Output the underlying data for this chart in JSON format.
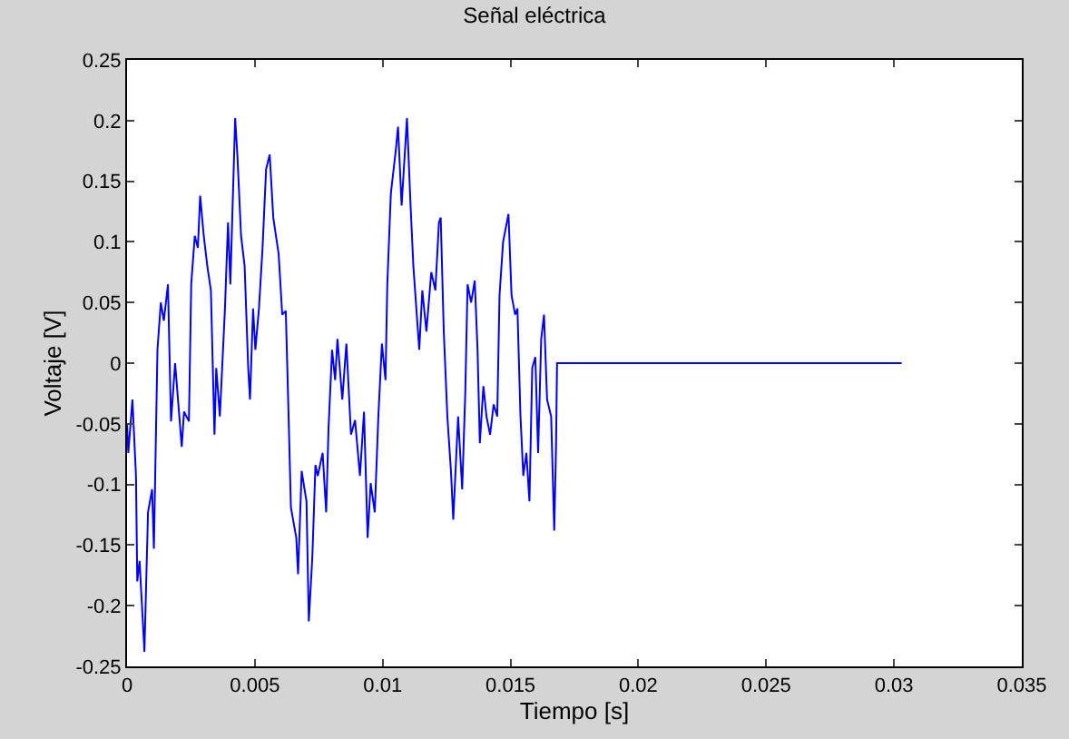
{
  "chart_data": {
    "type": "line",
    "title": "Señal eléctrica",
    "xlabel": "Tiempo [s]",
    "ylabel": "Voltaje [V]",
    "x": [
      0,
      5e-05,
      0.00021,
      0.00035,
      0.0004,
      0.00049,
      0.00068,
      0.00082,
      0.00098,
      0.00105,
      0.00119,
      0.00132,
      0.00144,
      0.0016,
      0.00172,
      0.00188,
      0.00214,
      0.00223,
      0.00242,
      0.00251,
      0.00265,
      0.00277,
      0.00286,
      0.003,
      0.00314,
      0.00328,
      0.00342,
      0.00349,
      0.00363,
      0.00383,
      0.00395,
      0.00404,
      0.00423,
      0.00432,
      0.00446,
      0.0046,
      0.00474,
      0.00481,
      0.00493,
      0.00502,
      0.00516,
      0.0053,
      0.00544,
      0.00558,
      0.00572,
      0.00593,
      0.00607,
      0.00621,
      0.00632,
      0.00641,
      0.00662,
      0.00669,
      0.00683,
      0.00702,
      0.00711,
      0.00725,
      0.00737,
      0.00746,
      0.00765,
      0.00779,
      0.00788,
      0.00802,
      0.00814,
      0.00823,
      0.00842,
      0.00858,
      0.00876,
      0.00892,
      0.00911,
      0.00927,
      0.00941,
      0.00953,
      0.00969,
      0.00983,
      0.00997,
      0.01011,
      0.01018,
      0.01032,
      0.01051,
      0.0106,
      0.01074,
      0.01095,
      0.01109,
      0.0112,
      0.01143,
      0.01155,
      0.01171,
      0.0119,
      0.01206,
      0.0122,
      0.01227,
      0.01239,
      0.01253,
      0.01267,
      0.01276,
      0.01295,
      0.01311,
      0.01323,
      0.01332,
      0.01346,
      0.0136,
      0.01371,
      0.0138,
      0.01394,
      0.01406,
      0.0142,
      0.01434,
      0.01448,
      0.01457,
      0.01471,
      0.01492,
      0.01504,
      0.01518,
      0.01527,
      0.01539,
      0.0155,
      0.01562,
      0.01574,
      0.01585,
      0.01597,
      0.01608,
      0.0162,
      0.01631,
      0.01643,
      0.01659,
      0.01671,
      0.01678,
      0.01682,
      0.0303
    ],
    "series": [
      {
        "color": "#0000ff",
        "values": [
          -0.05,
          -0.074,
          -0.03,
          -0.093,
          -0.18,
          -0.163,
          -0.238,
          -0.123,
          -0.104,
          -0.153,
          0.011,
          0.05,
          0.035,
          0.065,
          -0.048,
          0,
          -0.069,
          -0.04,
          -0.048,
          0.065,
          0.105,
          0.095,
          0.138,
          0.105,
          0.08,
          0.06,
          -0.059,
          -0.004,
          -0.044,
          0.045,
          0.116,
          0.065,
          0.202,
          0.17,
          0.105,
          0.08,
          -0.004,
          -0.03,
          0.045,
          0.011,
          0.045,
          0.095,
          0.16,
          0.172,
          0.12,
          0.09,
          0.04,
          0.043,
          -0.044,
          -0.119,
          -0.144,
          -0.174,
          -0.089,
          -0.114,
          -0.213,
          -0.159,
          -0.084,
          -0.093,
          -0.074,
          -0.123,
          -0.054,
          0.011,
          -0.014,
          0.02,
          -0.03,
          0.016,
          -0.059,
          -0.047,
          -0.093,
          -0.04,
          -0.144,
          -0.099,
          -0.123,
          -0.044,
          0.016,
          -0.014,
          0.065,
          0.14,
          0.175,
          0.195,
          0.13,
          0.202,
          0.13,
          0.08,
          0.011,
          0.06,
          0.026,
          0.075,
          0.06,
          0.116,
          0.12,
          0.026,
          -0.044,
          -0.089,
          -0.129,
          -0.044,
          -0.104,
          -0.025,
          0.065,
          0.05,
          0.068,
          0.011,
          -0.066,
          -0.019,
          -0.044,
          -0.059,
          -0.034,
          -0.044,
          0.056,
          0.1,
          0.123,
          0.056,
          0.04,
          0.045,
          -0.044,
          -0.093,
          -0.074,
          -0.114,
          -0.004,
          0.005,
          -0.074,
          0.02,
          0.04,
          -0.03,
          -0.044,
          -0.138,
          -0.069,
          0,
          0
        ]
      }
    ],
    "xlim": [
      0,
      0.035
    ],
    "xticks": [
      0,
      0.005,
      0.01,
      0.015,
      0.02,
      0.025,
      0.03,
      0.035
    ],
    "ylim": [
      -0.25,
      0.25
    ],
    "yticks": [
      -0.25,
      -0.2,
      -0.15,
      -0.1,
      -0.05,
      0,
      0.05,
      0.1,
      0.15,
      0.2,
      0.25
    ],
    "marker": "none",
    "line_style": "solid"
  }
}
